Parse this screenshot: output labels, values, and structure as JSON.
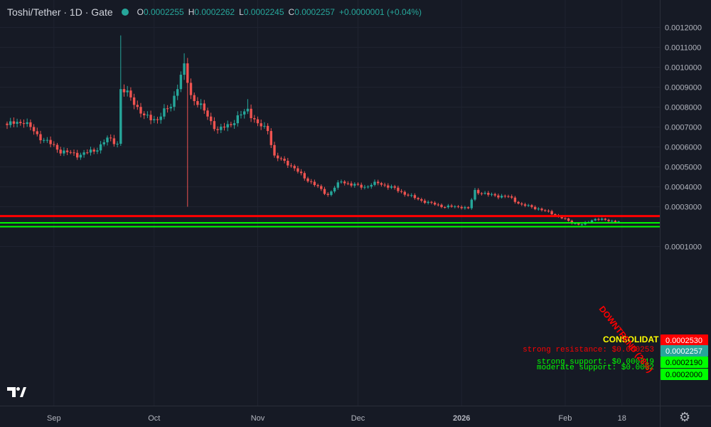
{
  "header": {
    "title": "Toshi/Tether · 1D · Gate",
    "ohlc": [
      {
        "key": "O",
        "value": "0.0002255"
      },
      {
        "key": "H",
        "value": "0.0002262"
      },
      {
        "key": "L",
        "value": "0.0002245"
      },
      {
        "key": "C",
        "value": "0.0002257"
      }
    ],
    "change": "+0.0000001 (+0.04%)"
  },
  "colors": {
    "background": "#161a25",
    "up": "#26a69a",
    "down": "#ef5350",
    "resistance": "#ff0000",
    "support": "#00ff00",
    "consolidation_text": "#ffff00"
  },
  "icons": {
    "logo": "tradingview-logo-icon",
    "settings": "gear-icon"
  },
  "chart_data": {
    "type": "candlestick",
    "title": "Toshi/Tether",
    "interval": "1D",
    "exchange": "Gate",
    "y_axis_ticks": [
      "0.0012000",
      "0.0011000",
      "0.0010000",
      "0.0009000",
      "0.0008000",
      "0.0007000",
      "0.0006000",
      "0.0005000",
      "0.0004000",
      "0.0003000",
      "0.0001000"
    ],
    "ylim": [
      7e-05,
      0.00128
    ],
    "x_axis_ticks": [
      {
        "label": "Sep",
        "date": "2025-09-01",
        "bold": false
      },
      {
        "label": "Oct",
        "date": "2025-10-01",
        "bold": false
      },
      {
        "label": "Nov",
        "date": "2025-11-01",
        "bold": false
      },
      {
        "label": "Dec",
        "date": "2025-12-01",
        "bold": false
      },
      {
        "label": "2026",
        "date": "2026-01-01",
        "bold": true
      },
      {
        "label": "Feb",
        "date": "2026-02-01",
        "bold": false
      },
      {
        "label": "18",
        "date": "2026-02-18",
        "bold": false
      }
    ],
    "x_start_date": "2025-08-18",
    "anchors": [
      {
        "date": "2025-08-18",
        "price": 0.00071
      },
      {
        "date": "2025-08-23",
        "price": 0.00073
      },
      {
        "date": "2025-08-27",
        "price": 0.00066
      },
      {
        "date": "2025-09-03",
        "price": 0.00058
      },
      {
        "date": "2025-09-08",
        "price": 0.00056
      },
      {
        "date": "2025-09-13",
        "price": 0.00058
      },
      {
        "date": "2025-09-17",
        "price": 0.00064
      },
      {
        "date": "2025-09-20",
        "price": 0.00062
      },
      {
        "date": "2025-09-21",
        "price": 0.00089
      },
      {
        "date": "2025-09-24",
        "price": 0.00085
      },
      {
        "date": "2025-09-28",
        "price": 0.00075
      },
      {
        "date": "2025-10-02",
        "price": 0.00074
      },
      {
        "date": "2025-10-06",
        "price": 0.00081
      },
      {
        "date": "2025-10-10",
        "price": 0.001
      },
      {
        "date": "2025-10-12",
        "price": 0.00086
      },
      {
        "date": "2025-10-16",
        "price": 0.00078
      },
      {
        "date": "2025-10-20",
        "price": 0.00068
      },
      {
        "date": "2025-10-25",
        "price": 0.00073
      },
      {
        "date": "2025-10-29",
        "price": 0.00079
      },
      {
        "date": "2025-11-01",
        "price": 0.00071
      },
      {
        "date": "2025-11-04",
        "price": 0.00069
      },
      {
        "date": "2025-11-06",
        "price": 0.00055
      },
      {
        "date": "2025-11-10",
        "price": 0.00052
      },
      {
        "date": "2025-11-14",
        "price": 0.00046
      },
      {
        "date": "2025-11-18",
        "price": 0.00041
      },
      {
        "date": "2025-11-22",
        "price": 0.00036
      },
      {
        "date": "2025-11-26",
        "price": 0.00043
      },
      {
        "date": "2025-11-29",
        "price": 0.00041
      },
      {
        "date": "2025-12-03",
        "price": 0.0004
      },
      {
        "date": "2025-12-07",
        "price": 0.00042
      },
      {
        "date": "2025-12-12",
        "price": 0.00039
      },
      {
        "date": "2025-12-17",
        "price": 0.00035
      },
      {
        "date": "2025-12-22",
        "price": 0.00032
      },
      {
        "date": "2025-12-27",
        "price": 0.0003
      },
      {
        "date": "2026-01-01",
        "price": 0.0003
      },
      {
        "date": "2026-01-03",
        "price": 0.00029
      },
      {
        "date": "2026-01-05",
        "price": 0.00038
      },
      {
        "date": "2026-01-09",
        "price": 0.00036
      },
      {
        "date": "2026-01-15",
        "price": 0.00035
      },
      {
        "date": "2026-01-19",
        "price": 0.00031
      },
      {
        "date": "2026-01-24",
        "price": 0.00029
      },
      {
        "date": "2026-01-29",
        "price": 0.00026
      },
      {
        "date": "2026-02-03",
        "price": 0.00022
      },
      {
        "date": "2026-02-06",
        "price": 0.00021
      },
      {
        "date": "2026-02-10",
        "price": 0.00024
      },
      {
        "date": "2026-02-14",
        "price": 0.00023
      },
      {
        "date": "2026-02-17",
        "price": 0.0002257
      }
    ],
    "spikes": [
      {
        "date": "2025-09-21",
        "high": 0.00116
      },
      {
        "date": "2025-10-10",
        "high": 0.00107
      },
      {
        "date": "2025-10-11",
        "low": 0.0003
      },
      {
        "date": "2025-10-29",
        "high": 0.00084
      }
    ],
    "horizontal_levels": [
      {
        "name": "resistance",
        "price": 0.000253,
        "label": "0.0002530",
        "color": "#ff0000",
        "text_color": "#ffffff"
      },
      {
        "name": "current-price",
        "price": 0.0002257,
        "label": "0.0002257",
        "color": "#26a69a",
        "text_color": "#ffffff"
      },
      {
        "name": "strong-support",
        "price": 0.000219,
        "label": "0.0002190",
        "color": "#00ff00",
        "text_color": "#000000"
      },
      {
        "name": "moderate-support",
        "price": 0.0002,
        "label": "0.0002000",
        "color": "#00ff00",
        "text_color": "#000000"
      }
    ],
    "annotations": {
      "consolidation": "CONSOLIDAT",
      "strong_resistance": "strong resistance: $0.000253",
      "strong_support": "strong support: $0.000219",
      "moderate_support": "moderate support: $0.0002",
      "downtrend": "DOWNTREND (28%)"
    }
  }
}
